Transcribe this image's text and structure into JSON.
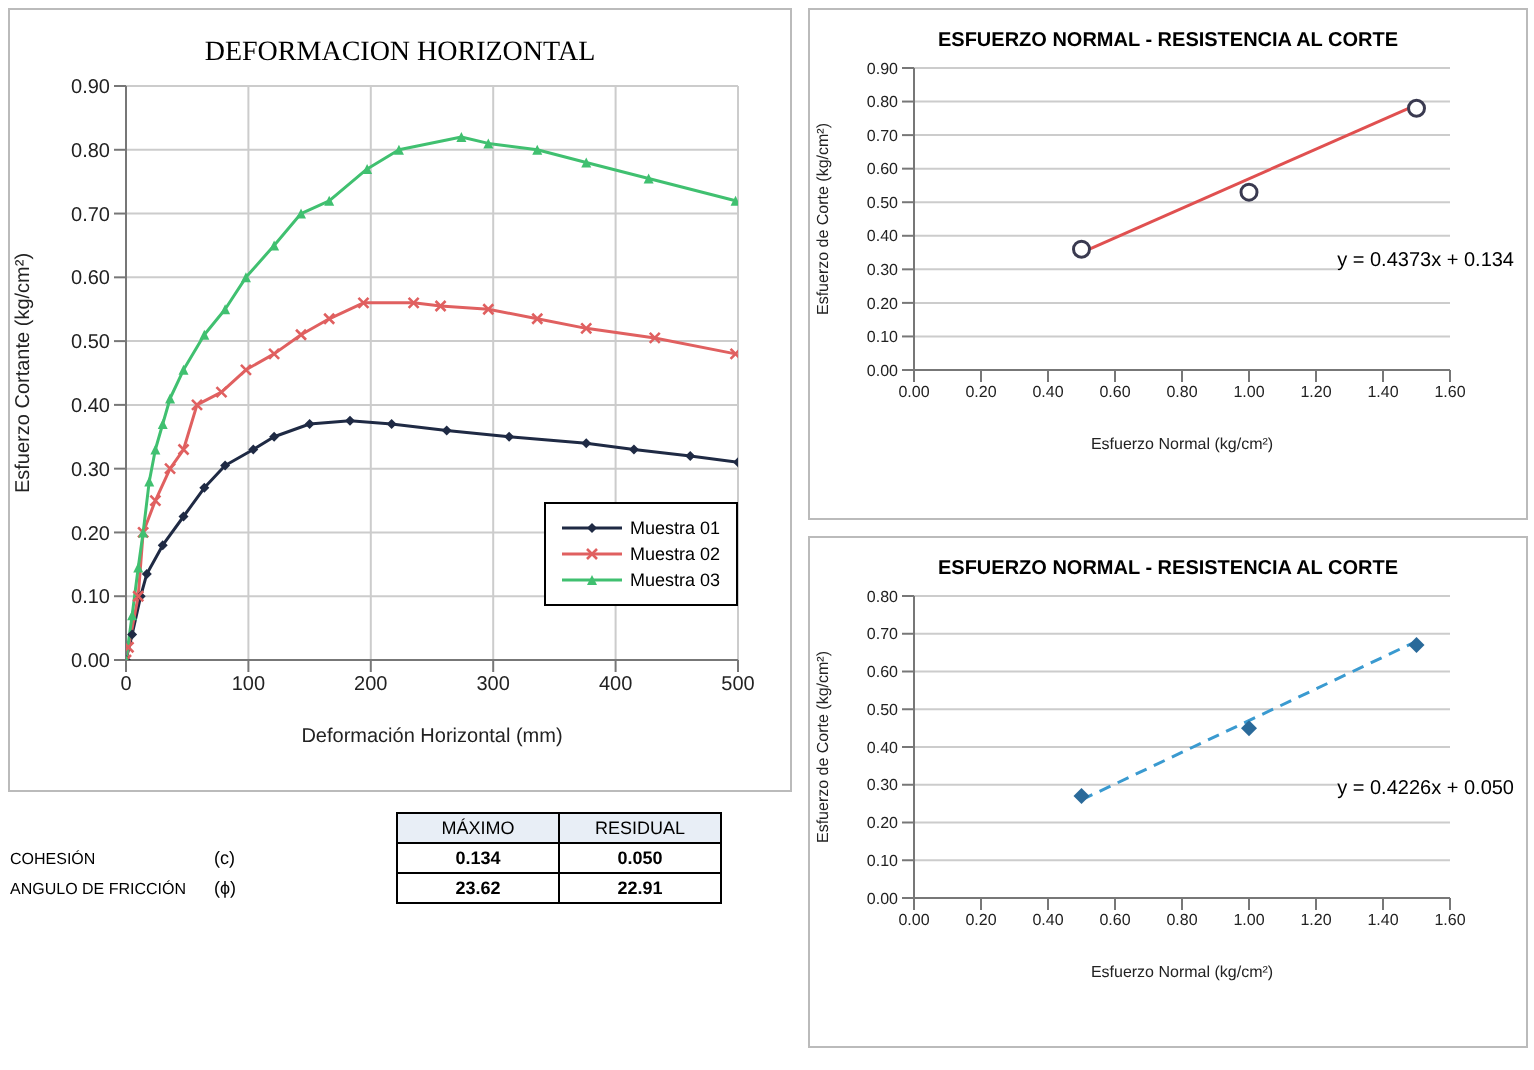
{
  "chart_data": [
    {
      "type": "line",
      "title": "DEFORMACION HORIZONTAL",
      "xlabel": "Deformación Horizontal (mm)",
      "ylabel": "Esfuerzo Cortante (kg/cm²)",
      "xlim": [
        0,
        500
      ],
      "xticks": [
        0,
        100,
        200,
        300,
        400,
        500
      ],
      "ylim": [
        0,
        0.9
      ],
      "yticks": [
        {
          "value": 0,
          "label": "0.00"
        },
        {
          "value": 0.1,
          "label": "0.10"
        },
        {
          "value": 0.2,
          "label": "0.20"
        },
        {
          "value": 0.3,
          "label": "0.30"
        },
        {
          "value": 0.4,
          "label": "0.40"
        },
        {
          "value": 0.5,
          "label": "0.50"
        },
        {
          "value": 0.6,
          "label": "0.60"
        },
        {
          "value": 0.7,
          "label": "0.70"
        },
        {
          "value": 0.8,
          "label": "0.80"
        },
        {
          "value": 0.9,
          "label": "0.90"
        }
      ],
      "grid": true,
      "legend": "bottom right",
      "series": [
        {
          "name": "Muestra 01",
          "color": "#1f2a44",
          "marker": "diamond",
          "x": [
            0,
            5,
            12,
            17,
            30,
            47,
            64,
            81,
            104,
            121,
            150,
            183,
            217,
            262,
            313,
            376,
            415,
            461,
            500
          ],
          "values": [
            0,
            0.04,
            0.1,
            0.135,
            0.18,
            0.225,
            0.27,
            0.305,
            0.33,
            0.35,
            0.37,
            0.375,
            0.37,
            0.36,
            0.35,
            0.34,
            0.33,
            0.32,
            0.31
          ]
        },
        {
          "name": "Muestra 02",
          "color": "#e06060",
          "marker": "cross",
          "x": [
            0,
            2,
            10,
            14,
            24,
            36,
            47,
            58,
            78,
            98,
            121,
            143,
            166,
            194,
            235,
            257,
            296,
            336,
            376,
            432,
            498
          ],
          "values": [
            0,
            0.02,
            0.1,
            0.2,
            0.25,
            0.3,
            0.33,
            0.4,
            0.42,
            0.455,
            0.48,
            0.51,
            0.535,
            0.56,
            0.56,
            0.555,
            0.55,
            0.535,
            0.52,
            0.505,
            0.48
          ]
        },
        {
          "name": "Muestra 03",
          "color": "#40c070",
          "marker": "triangle",
          "x": [
            0,
            5,
            10,
            14,
            19,
            24,
            30,
            36,
            47,
            64,
            81,
            98,
            121,
            143,
            166,
            197,
            223,
            274,
            296,
            336,
            376,
            427,
            498
          ],
          "values": [
            0,
            0.07,
            0.145,
            0.2,
            0.28,
            0.33,
            0.37,
            0.41,
            0.455,
            0.51,
            0.55,
            0.6,
            0.65,
            0.7,
            0.72,
            0.77,
            0.8,
            0.82,
            0.81,
            0.8,
            0.78,
            0.755,
            0.72
          ]
        }
      ]
    },
    {
      "type": "scatter",
      "title": "ESFUERZO NORMAL - RESISTENCIA AL CORTE",
      "xlabel": "Esfuerzo Normal (kg/cm²)",
      "ylabel": "Esfuerzo de Corte (kg/cm²)",
      "xlim": [
        0,
        1.6
      ],
      "xticks": [
        {
          "value": 0,
          "label": "0.00"
        },
        {
          "value": 0.2,
          "label": "0.20"
        },
        {
          "value": 0.4,
          "label": "0.40"
        },
        {
          "value": 0.6,
          "label": "0.60"
        },
        {
          "value": 0.8,
          "label": "0.80"
        },
        {
          "value": 1,
          "label": "1.00"
        },
        {
          "value": 1.2,
          "label": "1.20"
        },
        {
          "value": 1.4,
          "label": "1.40"
        },
        {
          "value": 1.6,
          "label": "1.60"
        }
      ],
      "ylim": [
        0,
        0.9
      ],
      "yticks": [
        {
          "value": 0,
          "label": "0.00"
        },
        {
          "value": 0.1,
          "label": "0.10"
        },
        {
          "value": 0.2,
          "label": "0.20"
        },
        {
          "value": 0.3,
          "label": "0.30"
        },
        {
          "value": 0.4,
          "label": "0.40"
        },
        {
          "value": 0.5,
          "label": "0.50"
        },
        {
          "value": 0.6,
          "label": "0.60"
        },
        {
          "value": 0.7,
          "label": "0.70"
        },
        {
          "value": 0.8,
          "label": "0.80"
        },
        {
          "value": 0.9,
          "label": "0.90"
        }
      ],
      "grid": "y",
      "annotations": [
        "y = 0.4373x + 0.134"
      ],
      "series": [
        {
          "type": "line",
          "color": "#e05050",
          "line_style": "solid",
          "marker": "none",
          "x": [
            0.5,
            1.5
          ],
          "values": [
            0.35,
            0.79
          ]
        },
        {
          "type": "scatter",
          "color": "#3a3a50",
          "marker": "circle",
          "x": [
            0.5,
            1,
            1.5
          ],
          "values": [
            0.36,
            0.53,
            0.78
          ]
        }
      ]
    },
    {
      "type": "scatter",
      "title": "ESFUERZO NORMAL - RESISTENCIA AL CORTE",
      "xlabel": "Esfuerzo Normal (kg/cm²)",
      "ylabel": "Esfuerzo de Corte (kg/cm²)",
      "xlim": [
        0,
        1.6
      ],
      "xticks": [
        {
          "value": 0,
          "label": "0.00"
        },
        {
          "value": 0.2,
          "label": "0.20"
        },
        {
          "value": 0.4,
          "label": "0.40"
        },
        {
          "value": 0.6,
          "label": "0.60"
        },
        {
          "value": 0.8,
          "label": "0.80"
        },
        {
          "value": 1,
          "label": "1.00"
        },
        {
          "value": 1.2,
          "label": "1.20"
        },
        {
          "value": 1.4,
          "label": "1.40"
        },
        {
          "value": 1.6,
          "label": "1.60"
        }
      ],
      "ylim": [
        0,
        0.8
      ],
      "yticks": [
        {
          "value": 0,
          "label": "0.00"
        },
        {
          "value": 0.1,
          "label": "0.10"
        },
        {
          "value": 0.2,
          "label": "0.20"
        },
        {
          "value": 0.3,
          "label": "0.30"
        },
        {
          "value": 0.4,
          "label": "0.40"
        },
        {
          "value": 0.5,
          "label": "0.50"
        },
        {
          "value": 0.6,
          "label": "0.60"
        },
        {
          "value": 0.7,
          "label": "0.70"
        },
        {
          "value": 0.8,
          "label": "0.80"
        }
      ],
      "grid": "y",
      "annotations": [
        "y = 0.4226x + 0.050"
      ],
      "series": [
        {
          "type": "line",
          "color": "#3a9ad0",
          "line_style": "dashed",
          "marker": "none",
          "x": [
            0.5,
            1.5
          ],
          "values": [
            0.26,
            0.68
          ]
        },
        {
          "type": "scatter",
          "color": "#2a6a9a",
          "marker": "diamond",
          "x": [
            0.5,
            1,
            1.5
          ],
          "values": [
            0.27,
            0.45,
            0.67
          ]
        }
      ]
    },
    {
      "type": "other",
      "annotations": [
        "MÁXIMO",
        "RESIDUAL",
        "COHESIÓN",
        "(c)",
        "0.134",
        "0.050",
        "ANGULO DE FRICCIÓN",
        "(ϕ)",
        "23.62",
        "22.91"
      ]
    }
  ]
}
